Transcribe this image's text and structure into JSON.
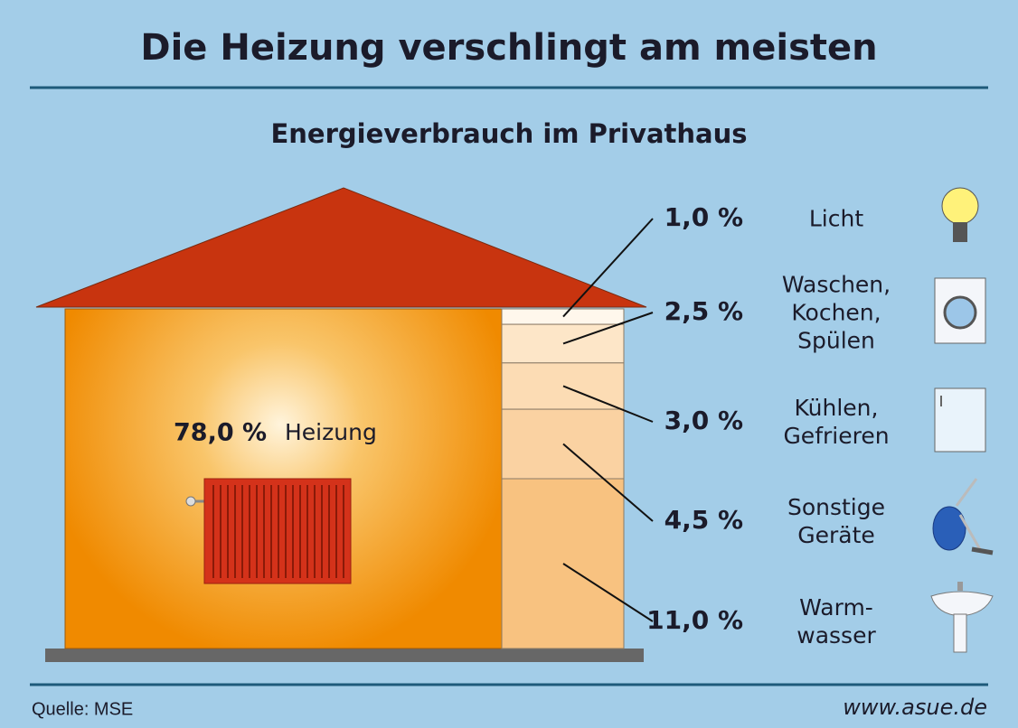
{
  "chart_data": {
    "type": "house",
    "title": "Die Heizung verschlingt am meisten",
    "subtitle": "Energieverbrauch im Privathaus",
    "categories": [
      "Heizung",
      "Licht",
      "Waschen,\nKochen,\nSpülen",
      "Kühlen,\nGefrieren",
      "Sonstige\nGeräte",
      "Warm-\nwasser"
    ],
    "values": [
      78.0,
      1.0,
      2.5,
      3.0,
      4.5,
      11.0
    ],
    "value_labels": [
      "78,0 %",
      "1,0 %",
      "2,5 %",
      "3,0 %",
      "4,5 %",
      "11,0 %"
    ],
    "colors": [
      "#f08a00",
      "#fff7ec",
      "#fde6c8",
      "#fcdcb4",
      "#fad2a2",
      "#f8c280"
    ],
    "source": "Quelle: MSE",
    "url": "www.asue.de"
  }
}
